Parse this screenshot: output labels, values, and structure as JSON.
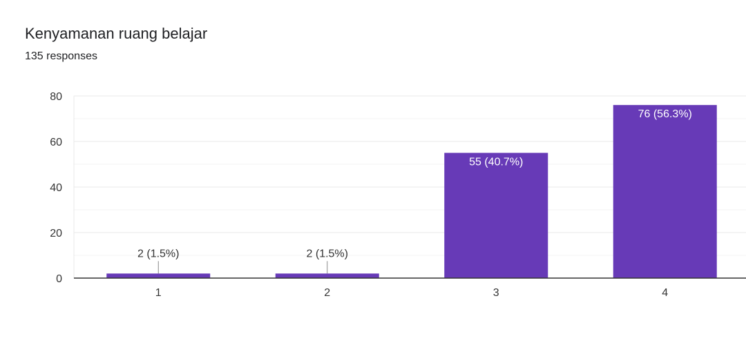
{
  "header": {
    "title": "Kenyamanan ruang belajar",
    "responses": "135 responses"
  },
  "colors": {
    "bar": "#673ab7",
    "grid": "#e8e8e8",
    "axis": "#333333",
    "text": "#333333",
    "inside_label": "#ffffff"
  },
  "chart_data": {
    "type": "bar",
    "categories": [
      "1",
      "2",
      "3",
      "4"
    ],
    "values": [
      2,
      2,
      55,
      76
    ],
    "data_labels": [
      "2 (1.5%)",
      "2 (1.5%)",
      "55 (40.7%)",
      "76 (56.3%)"
    ],
    "ylim": [
      0,
      80
    ],
    "yticks": [
      0,
      20,
      40,
      60,
      80
    ],
    "grid": true,
    "xlabel": "",
    "ylabel": ""
  }
}
